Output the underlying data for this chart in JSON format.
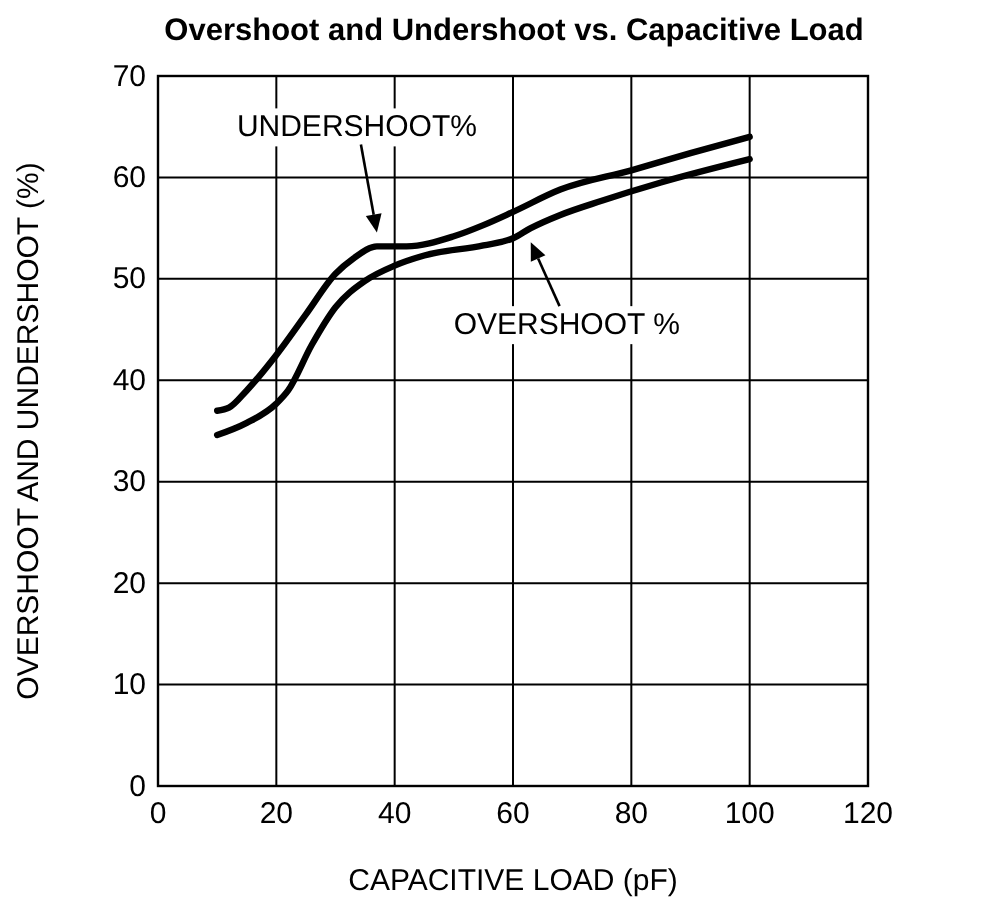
{
  "chart_data": {
    "type": "line",
    "title": "Overshoot and Undershoot vs. Capacitive Load",
    "xlabel": "CAPACITIVE LOAD (pF)",
    "ylabel": "OVERSHOOT AND UNDERSHOOT (%)",
    "x": [
      10,
      12,
      15,
      20,
      25,
      30,
      33,
      37,
      42,
      50,
      55,
      60,
      68,
      80,
      90,
      100
    ],
    "series": [
      {
        "name": "UNDERSHOOT%",
        "color": "#000000",
        "values": [
          37,
          37.3,
          39,
          42.5,
          46.5,
          50.5,
          52,
          53.2,
          53.2,
          54.2,
          55.3,
          56.6,
          58.8,
          60.7,
          62.4,
          64
        ]
      },
      {
        "name": "OVERSHOOT %",
        "color": "#000000",
        "x": [
          10,
          15,
          20,
          22,
          26,
          30,
          35,
          40,
          45,
          55,
          60,
          63,
          68,
          75,
          85,
          100
        ],
        "values": [
          34.6,
          35.8,
          37.7,
          39,
          43.5,
          47.2,
          49.8,
          51.3,
          52.3,
          53.3,
          54,
          55,
          56.3,
          57.7,
          59.5,
          61.8
        ]
      }
    ],
    "xlim": [
      0,
      120
    ],
    "xticks": [
      0,
      20,
      40,
      60,
      80,
      100,
      120
    ],
    "ylim": [
      0,
      70
    ],
    "yticks": [
      0,
      10,
      20,
      30,
      40,
      50,
      60,
      70
    ],
    "grid": true,
    "marker": "none",
    "line_style": "solid"
  }
}
